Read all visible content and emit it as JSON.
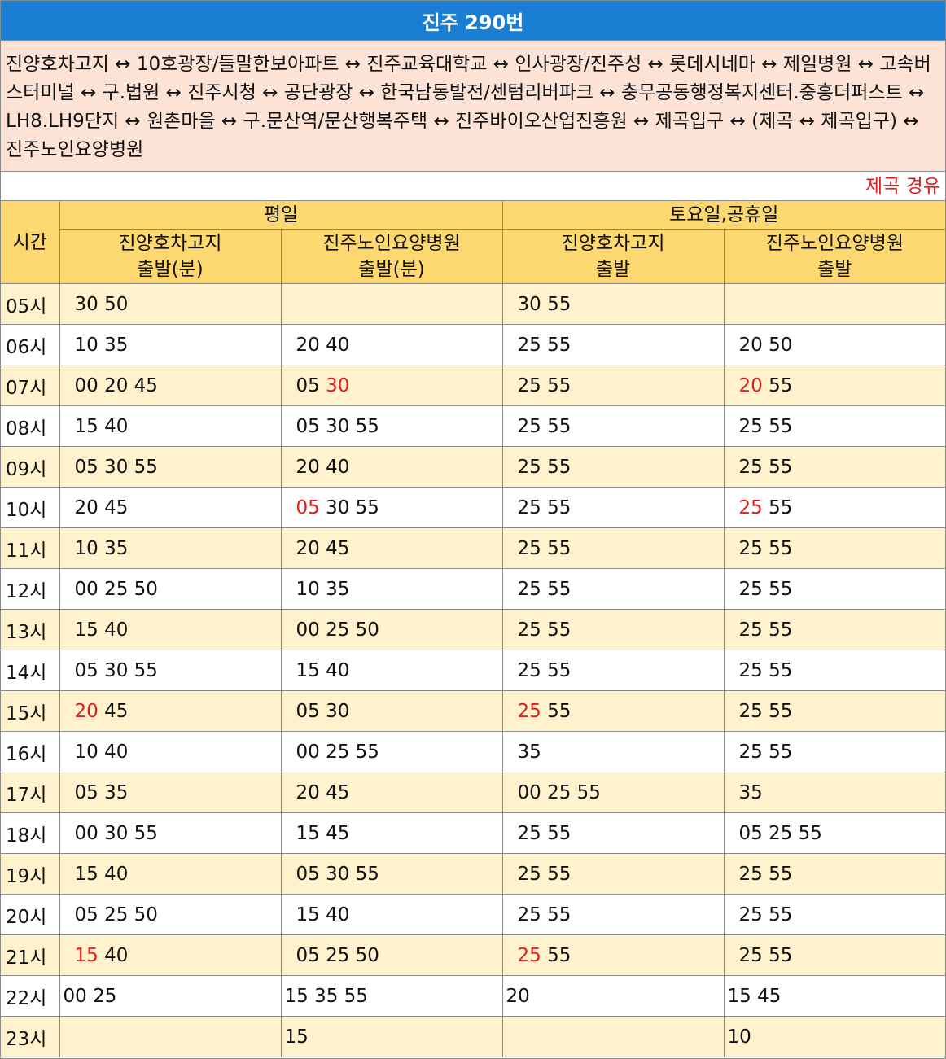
{
  "title": "진주 290번",
  "route": "진양호차고지 ↔ 10호광장/들말한보아파트 ↔ 진주교육대학교 ↔ 인사광장/진주성 ↔ 롯데시네마 ↔ 제일병원 ↔ 고속버스터미널 ↔ 구.법원 ↔ 진주시청 ↔ 공단광장 ↔ 한국남동발전/센텀리버파크 ↔ 충무공동행정복지센터.중흥더퍼스트 ↔ LH8.LH9단지 ↔ 원촌마을 ↔ 구.문산역/문산행복주택 ↔ 진주바이오산업진흥원 ↔ 제곡입구 ↔ (제곡 ↔ 제곡입구) ↔ 진주노인요양병원",
  "note": "제곡 경유",
  "colors": {
    "title_bg": "#1a7ed2",
    "route_bg": "#fde2d6",
    "header_bg": "#fdd870",
    "row_alt_bg": "#fff2cc",
    "highlight": "#e11d1d"
  },
  "header": {
    "hour": "시간",
    "weekday": "평일",
    "weekend": "토요일,공휴일",
    "wd_from_a": [
      "진양호차고지",
      "출발(분)"
    ],
    "wd_from_b": [
      "진주노인요양병원",
      "출발(분)"
    ],
    "we_from_a": [
      "진양호차고지",
      "출발"
    ],
    "we_from_b": [
      "진주노인요양병원",
      "출발"
    ]
  },
  "rows": [
    {
      "hour": "05시",
      "cells": [
        [
          {
            "t": "30 50"
          }
        ],
        [
          {
            "t": ""
          }
        ],
        [
          {
            "t": "30 55"
          }
        ],
        [
          {
            "t": ""
          }
        ]
      ]
    },
    {
      "hour": "06시",
      "cells": [
        [
          {
            "t": "10 35"
          }
        ],
        [
          {
            "t": "20 40"
          }
        ],
        [
          {
            "t": "25 55"
          }
        ],
        [
          {
            "t": "20 50"
          }
        ]
      ]
    },
    {
      "hour": "07시",
      "cells": [
        [
          {
            "t": "00 20 45"
          }
        ],
        [
          {
            "t": "05 "
          },
          {
            "t": "30",
            "red": true
          }
        ],
        [
          {
            "t": "25 55"
          }
        ],
        [
          {
            "t": "20",
            "red": true
          },
          {
            "t": " 55"
          }
        ]
      ]
    },
    {
      "hour": "08시",
      "cells": [
        [
          {
            "t": "15 40"
          }
        ],
        [
          {
            "t": "05 30 55"
          }
        ],
        [
          {
            "t": "25 55"
          }
        ],
        [
          {
            "t": "25 55"
          }
        ]
      ]
    },
    {
      "hour": "09시",
      "cells": [
        [
          {
            "t": "05 30 55"
          }
        ],
        [
          {
            "t": "20 40"
          }
        ],
        [
          {
            "t": "25 55"
          }
        ],
        [
          {
            "t": "25 55"
          }
        ]
      ]
    },
    {
      "hour": "10시",
      "cells": [
        [
          {
            "t": "20 45"
          }
        ],
        [
          {
            "t": "05",
            "red": true
          },
          {
            "t": " 30 55"
          }
        ],
        [
          {
            "t": "25 55"
          }
        ],
        [
          {
            "t": "25",
            "red": true
          },
          {
            "t": " 55"
          }
        ]
      ]
    },
    {
      "hour": "11시",
      "cells": [
        [
          {
            "t": "10 35"
          }
        ],
        [
          {
            "t": "20 45"
          }
        ],
        [
          {
            "t": "25 55"
          }
        ],
        [
          {
            "t": "25 55"
          }
        ]
      ]
    },
    {
      "hour": "12시",
      "cells": [
        [
          {
            "t": "00 25 50"
          }
        ],
        [
          {
            "t": "10 35"
          }
        ],
        [
          {
            "t": "25 55"
          }
        ],
        [
          {
            "t": "25 55"
          }
        ]
      ]
    },
    {
      "hour": "13시",
      "cells": [
        [
          {
            "t": "15 40"
          }
        ],
        [
          {
            "t": "00 25 50"
          }
        ],
        [
          {
            "t": "25 55"
          }
        ],
        [
          {
            "t": "25 55"
          }
        ]
      ]
    },
    {
      "hour": "14시",
      "cells": [
        [
          {
            "t": "05 30 55"
          }
        ],
        [
          {
            "t": "15 40"
          }
        ],
        [
          {
            "t": "25 55"
          }
        ],
        [
          {
            "t": "25 55"
          }
        ]
      ]
    },
    {
      "hour": "15시",
      "cells": [
        [
          {
            "t": "20",
            "red": true
          },
          {
            "t": " 45"
          }
        ],
        [
          {
            "t": "05 30"
          }
        ],
        [
          {
            "t": "25",
            "red": true
          },
          {
            "t": " 55"
          }
        ],
        [
          {
            "t": "25 55"
          }
        ]
      ]
    },
    {
      "hour": "16시",
      "cells": [
        [
          {
            "t": "10 40"
          }
        ],
        [
          {
            "t": "00 25 55"
          }
        ],
        [
          {
            "t": "35"
          }
        ],
        [
          {
            "t": "25 55"
          }
        ]
      ]
    },
    {
      "hour": "17시",
      "cells": [
        [
          {
            "t": "05 35"
          }
        ],
        [
          {
            "t": "20 45"
          }
        ],
        [
          {
            "t": "00 25 55"
          }
        ],
        [
          {
            "t": "35"
          }
        ]
      ]
    },
    {
      "hour": "18시",
      "cells": [
        [
          {
            "t": "00 30 55"
          }
        ],
        [
          {
            "t": "15 45"
          }
        ],
        [
          {
            "t": "25 55"
          }
        ],
        [
          {
            "t": "05 25 55"
          }
        ]
      ]
    },
    {
      "hour": "19시",
      "cells": [
        [
          {
            "t": "15 40"
          }
        ],
        [
          {
            "t": "05 30 55"
          }
        ],
        [
          {
            "t": "25 55"
          }
        ],
        [
          {
            "t": "25 55"
          }
        ]
      ]
    },
    {
      "hour": "20시",
      "cells": [
        [
          {
            "t": "05 25 50"
          }
        ],
        [
          {
            "t": "15 40"
          }
        ],
        [
          {
            "t": "25 55"
          }
        ],
        [
          {
            "t": "25 55"
          }
        ]
      ]
    },
    {
      "hour": "21시",
      "cells": [
        [
          {
            "t": "15",
            "red": true
          },
          {
            "t": " 40"
          }
        ],
        [
          {
            "t": "05 25 50"
          }
        ],
        [
          {
            "t": "25",
            "red": true
          },
          {
            "t": " 55"
          }
        ],
        [
          {
            "t": "25 55"
          }
        ]
      ]
    },
    {
      "hour": "22시",
      "late": true,
      "cells": [
        [
          {
            "t": "00 25"
          }
        ],
        [
          {
            "t": "15 35 55"
          }
        ],
        [
          {
            "t": "20"
          }
        ],
        [
          {
            "t": "15 45"
          }
        ]
      ]
    },
    {
      "hour": "23시",
      "late": true,
      "cells": [
        [
          {
            "t": ""
          }
        ],
        [
          {
            "t": "15"
          }
        ],
        [
          {
            "t": ""
          }
        ],
        [
          {
            "t": "10"
          }
        ]
      ]
    }
  ]
}
